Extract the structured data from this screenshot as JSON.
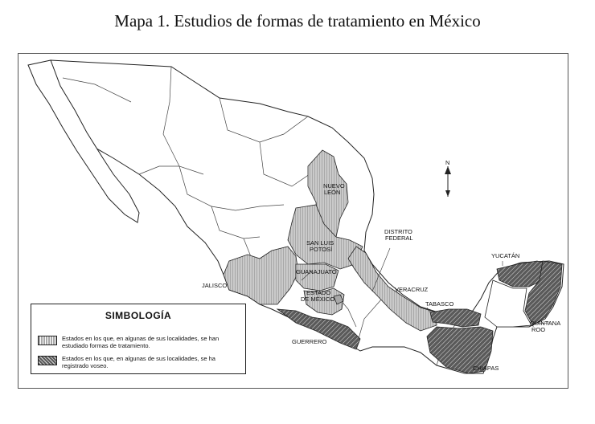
{
  "title": "Mapa 1. Estudios de formas de tratamiento en México",
  "colors": {
    "studied": "#a8a8a8",
    "voseo": "#5a5a5a",
    "outline": "#222222"
  },
  "states": [
    {
      "key": "nuevo_leon",
      "label_lines": [
        "NUEVO",
        "LEÓN"
      ],
      "category": "studied"
    },
    {
      "key": "san_luis_potosi",
      "label_lines": [
        "SAN LUIS",
        "POTOSÍ"
      ],
      "category": "studied"
    },
    {
      "key": "guanajuato",
      "label_lines": [
        "GUANAJUATO"
      ],
      "category": "studied"
    },
    {
      "key": "estado_de_mexico",
      "label_lines": [
        "ESTADO",
        "DE MÉXICO"
      ],
      "category": "studied"
    },
    {
      "key": "distrito_federal",
      "label_lines": [
        "DISTRITO",
        "FEDERAL"
      ],
      "category": "studied"
    },
    {
      "key": "jalisco",
      "label_lines": [
        "JALISCO"
      ],
      "category": "studied"
    },
    {
      "key": "veracruz",
      "label_lines": [
        "VERACRUZ"
      ],
      "category": "studied"
    },
    {
      "key": "guerrero",
      "label_lines": [
        "GUERRERO"
      ],
      "category": "voseo"
    },
    {
      "key": "tabasco",
      "label_lines": [
        "TABASCO"
      ],
      "category": "voseo"
    },
    {
      "key": "chiapas",
      "label_lines": [
        "CHIAPAS"
      ],
      "category": "voseo"
    },
    {
      "key": "yucatan",
      "label_lines": [
        "YUCATÁN"
      ],
      "category": "voseo"
    },
    {
      "key": "quintana_roo",
      "label_lines": [
        "QUINTANA",
        "ROO"
      ],
      "category": "voseo"
    }
  ],
  "north_label": "N",
  "legend": {
    "title": "SIMBOLOGÍA",
    "items": [
      {
        "category": "studied",
        "text": "Estados en los que, en algunas de sus localidades, se han estudiado formas de tratamiento."
      },
      {
        "category": "voseo",
        "text": "Estados en los que, en algunas de sus localidades, se ha registrado voseo."
      }
    ]
  }
}
